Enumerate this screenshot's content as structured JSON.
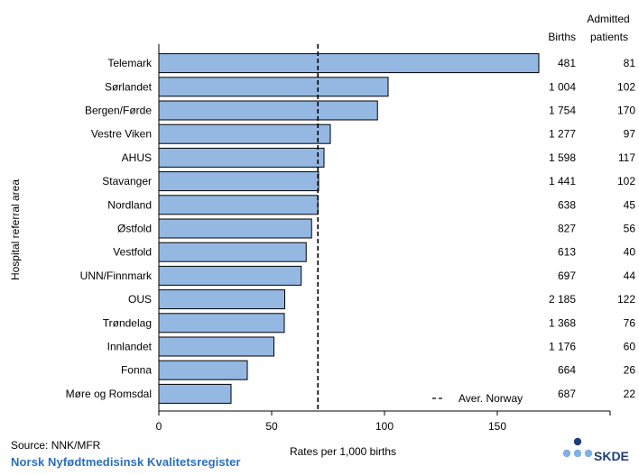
{
  "chart_data": {
    "type": "bar",
    "orientation": "horizontal",
    "categories": [
      "Telemark",
      "Sørlandet",
      "Bergen/Førde",
      "Vestre Viken",
      "AHUS",
      "Stavanger",
      "Nordland",
      "Østfold",
      "Vestfold",
      "UNN/Finnmark",
      "OUS",
      "Trøndelag",
      "Innlandet",
      "Fonna",
      "Møre og Romsdal"
    ],
    "values": [
      168.4,
      101.6,
      96.9,
      76.0,
      73.2,
      70.8,
      70.5,
      67.7,
      65.3,
      63.1,
      55.8,
      55.6,
      51.0,
      39.2,
      32.0
    ],
    "births": [
      "481",
      "1 004",
      "1 754",
      "1 277",
      "1 598",
      "1 441",
      "638",
      "827",
      "613",
      "697",
      "2 185",
      "1 368",
      "1 176",
      "664",
      "687"
    ],
    "admitted": [
      "81",
      "102",
      "170",
      "97",
      "117",
      "102",
      "45",
      "56",
      "40",
      "44",
      "122",
      "76",
      "60",
      "26",
      "22"
    ],
    "reference_line": {
      "label": "Aver. Norway",
      "value": 70.5,
      "style": "dashed"
    },
    "xlabel": "Rates per 1,000 births",
    "ylabel": "Hospital referral area",
    "xlim": [
      0,
      200
    ],
    "xticks": [
      "0",
      "50",
      "100",
      "150"
    ],
    "col_births_header": "Births",
    "col_admitted_header_line1": "Admitted",
    "col_admitted_header_line2": "patients",
    "bar_color": "#95b8e3",
    "grid": false
  },
  "footer": {
    "source": "Source: NNK/MFR",
    "registry": "Norsk Nyfødtmedisinsk Kvalitetsregister",
    "logo_text": "SKDE",
    "logo_color": "#1f3f7a"
  }
}
